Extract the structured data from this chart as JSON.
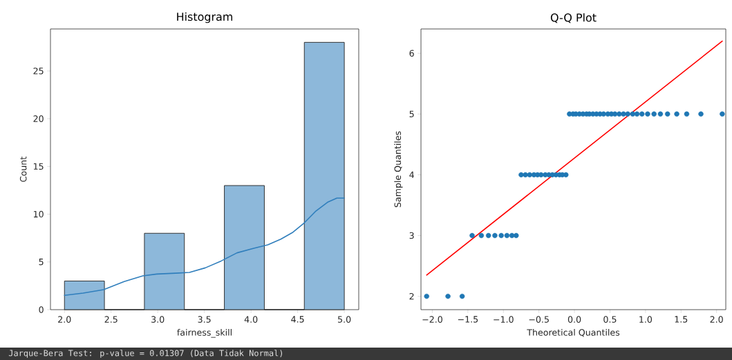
{
  "chart_data": [
    {
      "type": "histogram",
      "title": "Histogram",
      "xlabel": "fairness_skill",
      "ylabel": "Count",
      "xlim": [
        1.85,
        5.155
      ],
      "ylim": [
        0,
        29.4
      ],
      "xticks": [
        {
          "value": 2,
          "label": "2.0"
        },
        2.5,
        {
          "value": 3,
          "label": "3.0"
        },
        3.5,
        {
          "value": 4,
          "label": "4.0"
        },
        4.5,
        {
          "value": 5,
          "label": "5.0"
        }
      ],
      "yticks": [
        0,
        5,
        10,
        15,
        20,
        25
      ],
      "series": [
        {
          "bins": [
            2,
            2.4286,
            2.8571,
            3.2857,
            3.7143,
            4.1429,
            4.5714,
            5
          ],
          "values": [
            3,
            0,
            8,
            0,
            13,
            0,
            28
          ],
          "color": "#8db8da"
        },
        {
          "type": "line",
          "x": [
            2.0,
            2.2,
            2.42,
            2.64,
            2.84,
            2.99,
            3.19,
            3.34,
            3.51,
            3.68,
            3.85,
            4.03,
            4.18,
            4.32,
            4.45,
            4.57,
            4.69,
            4.82,
            4.92,
            5.0
          ],
          "values": [
            1.5,
            1.73,
            2.1,
            2.94,
            3.54,
            3.73,
            3.82,
            3.9,
            4.38,
            5.1,
            5.95,
            6.43,
            6.79,
            7.39,
            8.11,
            9.08,
            10.28,
            11.25,
            11.68,
            11.68
          ],
          "color": "#2f7ebc"
        }
      ],
      "annotations": [
        "Jarque-Bera Test: p-value = 0.01307 (Data Tidak Normal)"
      ]
    },
    {
      "type": "scatter",
      "title": "Q-Q Plot",
      "xlabel": "Theoretical Quantiles",
      "ylabel": "Sample Quantiles",
      "xlim": [
        -2.16,
        2.13
      ],
      "ylim": [
        1.78,
        6.4
      ],
      "xticks": [
        {
          "value": -2,
          "label": "−2.0"
        },
        {
          "value": -1.5,
          "label": "−1.5"
        },
        {
          "value": -1,
          "label": "−1.0"
        },
        {
          "value": -0.5,
          "label": "−0.5"
        },
        {
          "value": 0,
          "label": "0.0"
        },
        0.5,
        {
          "value": 1,
          "label": "1.0"
        },
        1.5,
        {
          "value": 2,
          "label": "2.0"
        }
      ],
      "yticks": [
        2,
        3,
        4,
        5,
        6
      ],
      "marker": "circle",
      "series": [
        {
          "color": "#1f77b4",
          "x": [
            -2.08,
            -1.78,
            -1.58,
            -1.44,
            -1.31,
            -1.21,
            -1.12,
            -1.03,
            -0.95,
            -0.88,
            -0.82,
            -0.75,
            -0.69,
            -0.63,
            -0.57,
            -0.52,
            -0.47,
            -0.41,
            -0.36,
            -0.31,
            -0.26,
            -0.21,
            -0.17,
            -0.12,
            -0.07,
            -0.02,
            0.02,
            0.07,
            0.12,
            0.17,
            0.21,
            0.26,
            0.31,
            0.36,
            0.41,
            0.47,
            0.52,
            0.57,
            0.63,
            0.69,
            0.75,
            0.82,
            0.88,
            0.95,
            1.03,
            1.12,
            1.21,
            1.31,
            1.44,
            1.58,
            1.78,
            2.08
          ],
          "values": [
            2,
            2,
            2,
            3,
            3,
            3,
            3,
            3,
            3,
            3,
            3,
            4,
            4,
            4,
            4,
            4,
            4,
            4,
            4,
            4,
            4,
            4,
            4,
            4,
            5,
            5,
            5,
            5,
            5,
            5,
            5,
            5,
            5,
            5,
            5,
            5,
            5,
            5,
            5,
            5,
            5,
            5,
            5,
            5,
            5,
            5,
            5,
            5,
            5,
            5,
            5,
            5
          ]
        },
        {
          "type": "line",
          "marker": "none",
          "color": "#ff0000",
          "x": [
            -2.08,
            2.08
          ],
          "values": [
            2.35,
            6.2
          ]
        }
      ]
    }
  ]
}
